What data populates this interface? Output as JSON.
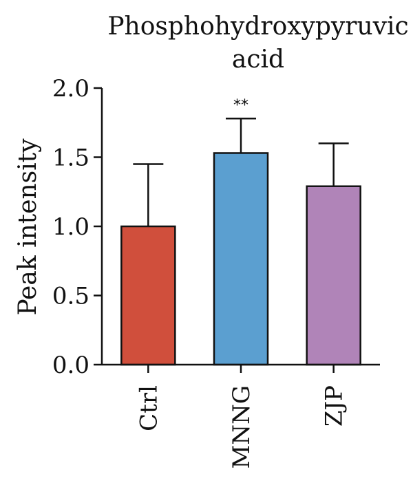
{
  "chart_data": {
    "type": "bar",
    "title_lines": [
      "Phosphohydroxypyruvic",
      "acid"
    ],
    "xlabel": "",
    "ylabel": "Peak intensity",
    "categories": [
      "Ctrl",
      "MNNG",
      "ZJP"
    ],
    "values": [
      1.0,
      1.53,
      1.29
    ],
    "error_upper": [
      0.45,
      0.25,
      0.31
    ],
    "significance": [
      "",
      "**",
      ""
    ],
    "ylim": [
      0,
      2.0
    ],
    "yticks": [
      0.0,
      0.5,
      1.0,
      1.5,
      2.0
    ],
    "ytick_labels": [
      "0.0",
      "0.5",
      "1.0",
      "1.5",
      "2.0"
    ],
    "bar_colors": [
      "#d04f3c",
      "#5b9fd0",
      "#b084b8"
    ],
    "grid": false
  }
}
